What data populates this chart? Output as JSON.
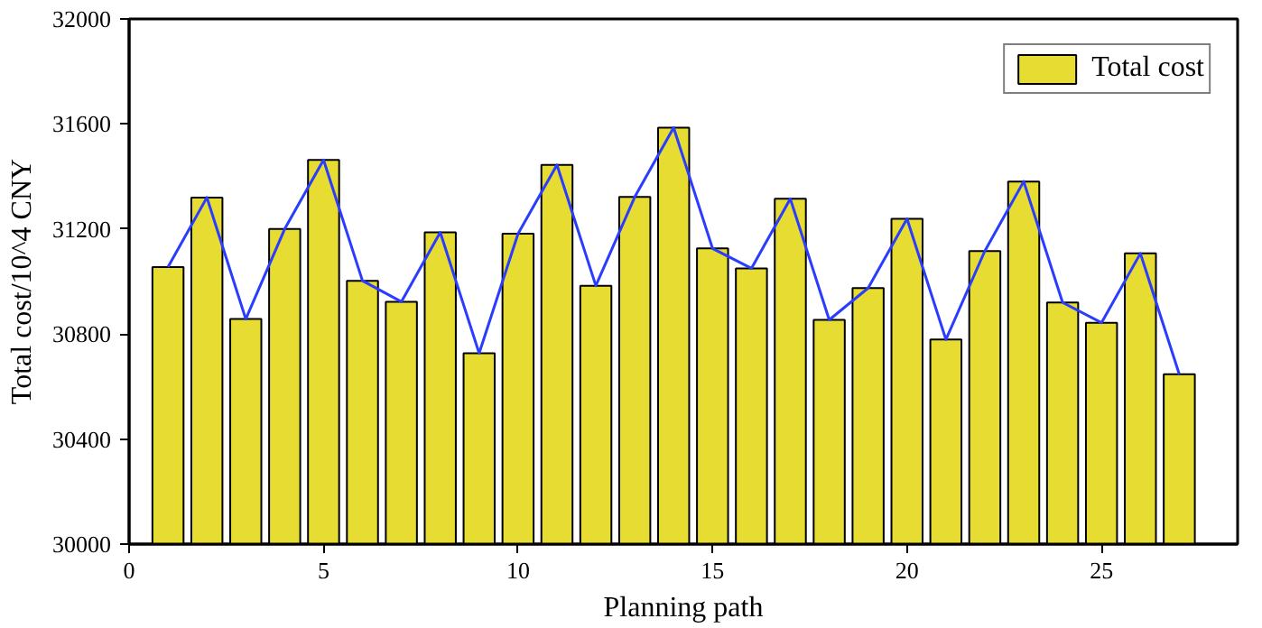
{
  "chart_data": {
    "type": "bar",
    "xlabel": "Planning path",
    "ylabel": "Total cost/10^4 CNY",
    "x": [
      1,
      2,
      3,
      4,
      5,
      6,
      7,
      8,
      9,
      10,
      11,
      12,
      13,
      14,
      15,
      16,
      17,
      18,
      19,
      20,
      21,
      22,
      23,
      24,
      25,
      26,
      27
    ],
    "series": [
      {
        "name": "Total cost",
        "color": "#e6dc32",
        "values": [
          31055,
          31320,
          30857,
          31200,
          31463,
          31003,
          30923,
          31187,
          30727,
          31182,
          31444,
          30984,
          31322,
          31586,
          31126,
          31050,
          31315,
          30854,
          30975,
          31239,
          30779,
          31116,
          31381,
          30920,
          30843,
          31107,
          30647
        ]
      },
      {
        "type": "line",
        "color": "#2a3cff",
        "values": [
          31055,
          31320,
          30857,
          31200,
          31463,
          31003,
          30923,
          31187,
          30727,
          31182,
          31444,
          30984,
          31322,
          31586,
          31126,
          31050,
          31315,
          30854,
          30975,
          31239,
          30779,
          31116,
          31381,
          30920,
          30843,
          31107,
          30647
        ]
      }
    ],
    "xlim": [
      0,
      28.5
    ],
    "xticks": [
      0,
      5,
      10,
      15,
      20,
      25
    ],
    "ylim": [
      30000,
      32000
    ],
    "yticks": [
      30000,
      30400,
      30800,
      31200,
      31600,
      32000
    ],
    "grid": false,
    "legend": "top right",
    "marker": "none",
    "line_style": "solid"
  }
}
